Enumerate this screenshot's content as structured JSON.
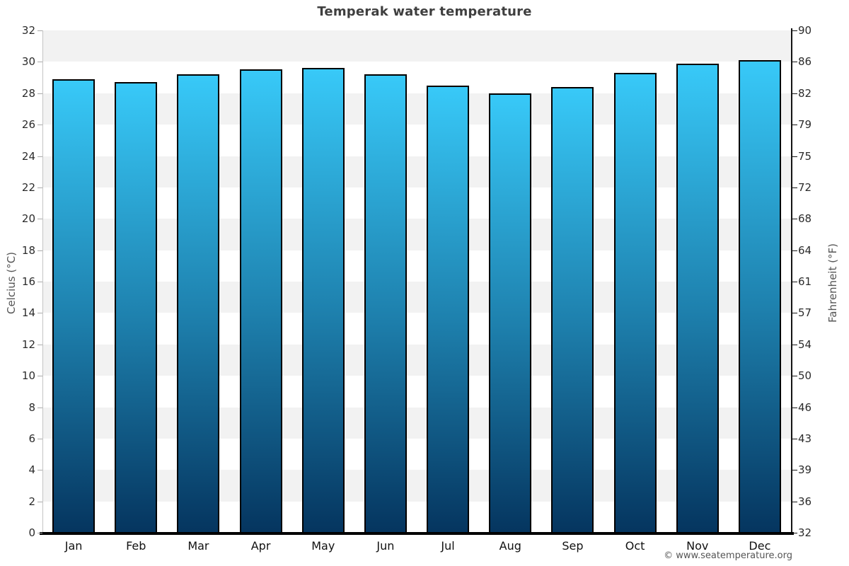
{
  "chart_data": {
    "type": "bar",
    "title": "Temperak water temperature",
    "categories": [
      "Jan",
      "Feb",
      "Mar",
      "Apr",
      "May",
      "Jun",
      "Jul",
      "Aug",
      "Sep",
      "Oct",
      "Nov",
      "Dec"
    ],
    "values": [
      28.9,
      28.7,
      29.2,
      29.5,
      29.6,
      29.2,
      28.5,
      28.0,
      28.4,
      29.3,
      29.9,
      30.1
    ],
    "unit": "°C",
    "ylabel_left": "Celcius (°C)",
    "ylabel_right": "Fahrenheit (°F)",
    "ylim_celsius": [
      0,
      32
    ],
    "celsius_ticks": [
      32,
      30,
      28,
      26,
      24,
      22,
      20,
      18,
      16,
      14,
      12,
      10,
      8,
      6,
      4,
      2,
      0
    ],
    "fahrenheit_tick_labels": [
      "90",
      "86",
      "82",
      "79",
      "75",
      "72",
      "68",
      "64",
      "61",
      "57",
      "54",
      "50",
      "46",
      "43",
      "39",
      "36",
      "32"
    ],
    "xlabel": "",
    "legend": "none",
    "grid": "alternating horizontal bands every 2°C",
    "band_color_gray": "#f2f2f2",
    "band_color_white": "#ffffff",
    "bar_gradient_top": "#38c9f8",
    "bar_gradient_mid": "#1e81ae",
    "bar_gradient_bottom": "#05355f",
    "bar_border_color": "#000000",
    "title_color": "#3f3f3f"
  },
  "footer": {
    "copyright": "© www.seatemperature.org"
  }
}
